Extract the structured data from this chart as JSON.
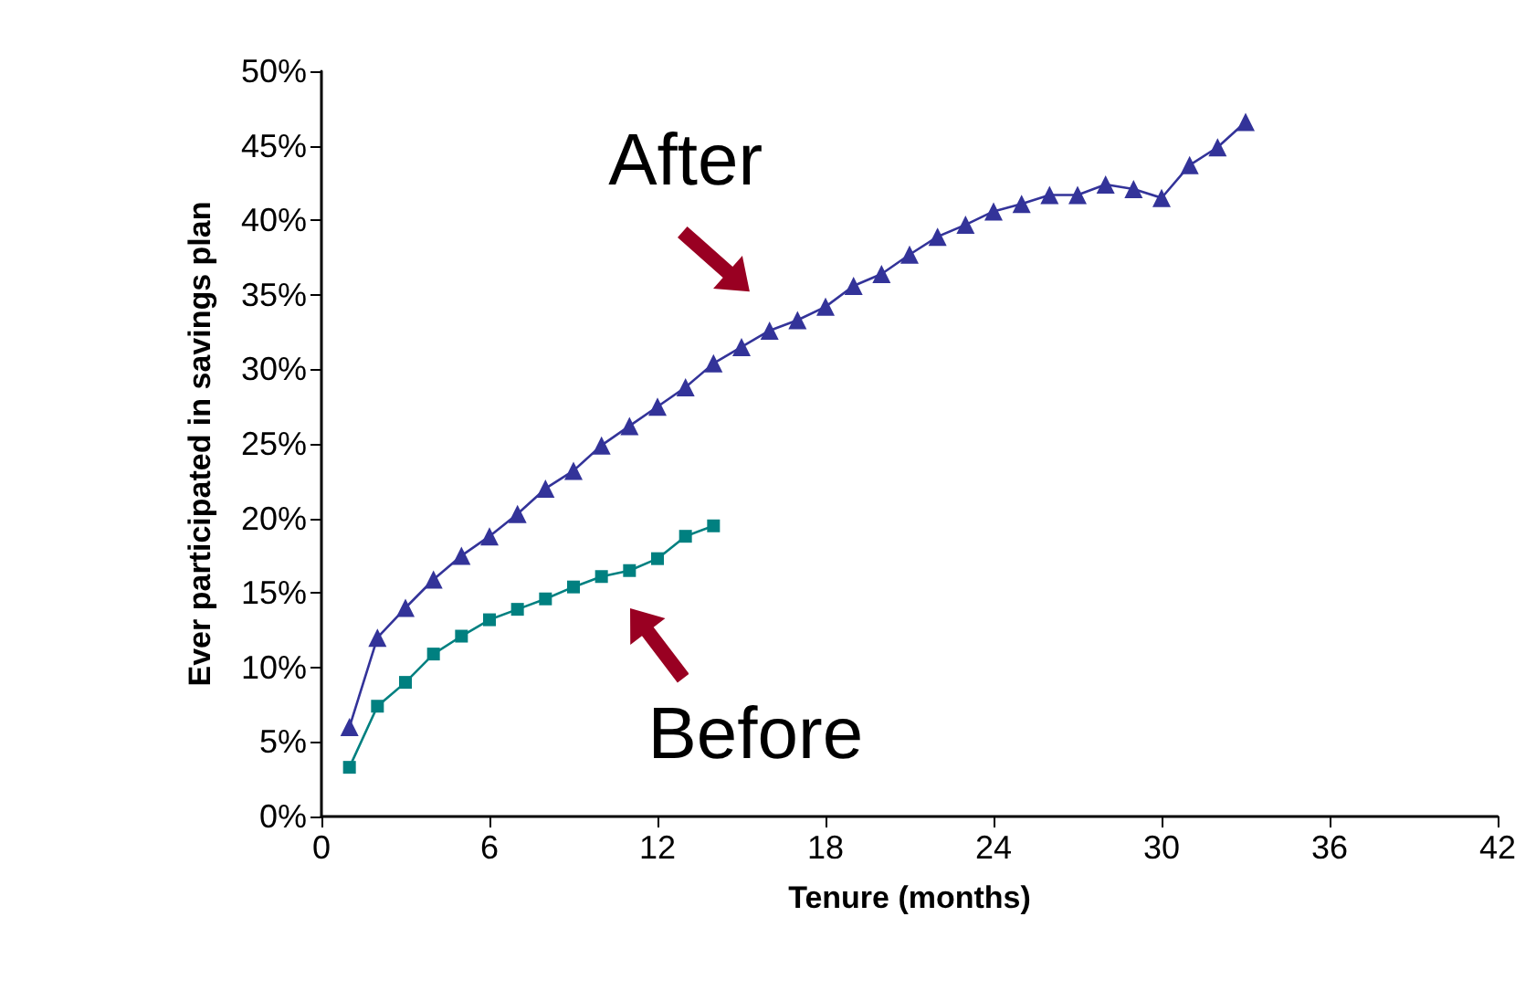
{
  "chart_data": {
    "type": "line",
    "xlabel": "Tenure (months)",
    "ylabel": "Ever participated in savings plan",
    "series": [
      {
        "name": "After",
        "color": "#333399",
        "marker": "triangle",
        "x": [
          1,
          2,
          3,
          4,
          5,
          6,
          7,
          8,
          9,
          10,
          11,
          12,
          13,
          14,
          15,
          16,
          17,
          18,
          19,
          20,
          21,
          22,
          23,
          24,
          25,
          26,
          27,
          28,
          29,
          30,
          31,
          32,
          33
        ],
        "values": [
          6,
          12,
          14,
          15.9,
          17.5,
          18.8,
          20.3,
          22,
          23.2,
          24.9,
          26.2,
          27.5,
          28.8,
          30.4,
          31.5,
          32.6,
          33.3,
          34.2,
          35.6,
          36.4,
          37.7,
          38.9,
          39.7,
          40.6,
          41.1,
          41.7,
          41.7,
          42.4,
          42.1,
          41.5,
          43.7,
          44.9,
          46.6
        ]
      },
      {
        "name": "Before",
        "color": "#008080",
        "marker": "square",
        "x": [
          1,
          2,
          3,
          4,
          5,
          6,
          7,
          8,
          9,
          10,
          11,
          12,
          13,
          14
        ],
        "values": [
          3.3,
          7.4,
          9,
          10.9,
          12.1,
          13.2,
          13.9,
          14.6,
          15.4,
          16.1,
          16.5,
          17.3,
          18.8,
          19.5
        ]
      }
    ],
    "xlim": [
      0,
      42
    ],
    "xticks": [
      0,
      6,
      12,
      18,
      24,
      30,
      36,
      42
    ],
    "ylim": [
      0,
      50
    ],
    "yticks": [
      {
        "value": 0,
        "label": "0%"
      },
      {
        "value": 5,
        "label": "5%"
      },
      {
        "value": 10,
        "label": "10%"
      },
      {
        "value": 15,
        "label": "15%"
      },
      {
        "value": 20,
        "label": "20%"
      },
      {
        "value": 25,
        "label": "25%"
      },
      {
        "value": 30,
        "label": "30%"
      },
      {
        "value": 35,
        "label": "35%"
      },
      {
        "value": 40,
        "label": "40%"
      },
      {
        "value": 45,
        "label": "45%"
      },
      {
        "value": 50,
        "label": "50%"
      }
    ],
    "grid": false,
    "legend": false,
    "line_style": "solid"
  }
}
